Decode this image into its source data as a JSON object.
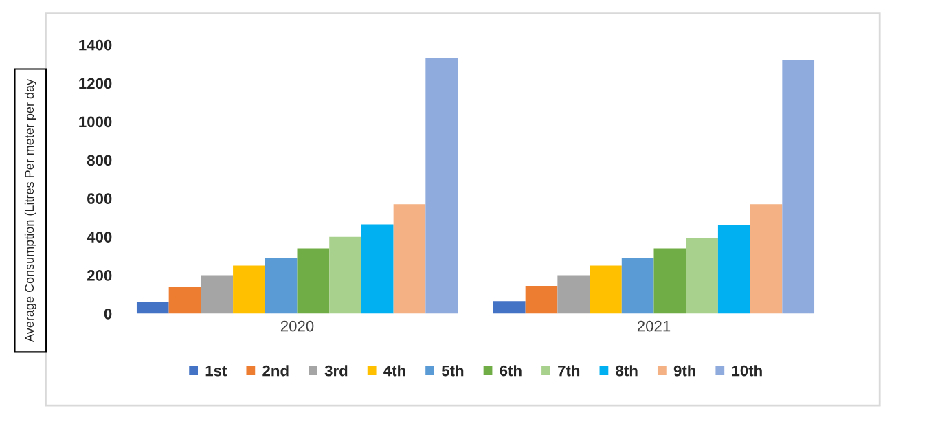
{
  "chart_data": {
    "type": "bar",
    "categories": [
      "2020",
      "2021"
    ],
    "ylabel": "Average Consumption (Litres Per meter per day",
    "ylim": [
      0,
      1400
    ],
    "yticks": [
      0,
      200,
      400,
      600,
      800,
      1000,
      1200,
      1400
    ],
    "grid": false,
    "legend": "bottom",
    "series": [
      {
        "name": "1st",
        "color": "#4472c4",
        "values": [
          60,
          65
        ]
      },
      {
        "name": "2nd",
        "color": "#ed7d31",
        "values": [
          140,
          145
        ]
      },
      {
        "name": "3rd",
        "color": "#a5a5a5",
        "values": [
          200,
          200
        ]
      },
      {
        "name": "4th",
        "color": "#ffc000",
        "values": [
          250,
          250
        ]
      },
      {
        "name": "5th",
        "color": "#5b9bd5",
        "values": [
          290,
          290
        ]
      },
      {
        "name": "6th",
        "color": "#70ad47",
        "values": [
          340,
          340
        ]
      },
      {
        "name": "7th",
        "color": "#a9d18e",
        "values": [
          400,
          395
        ]
      },
      {
        "name": "8th",
        "color": "#00b0f0",
        "values": [
          465,
          460
        ]
      },
      {
        "name": "9th",
        "color": "#f4b183",
        "values": [
          570,
          570
        ]
      },
      {
        "name": "10th",
        "color": "#8faadc",
        "values": [
          1330,
          1320
        ]
      }
    ]
  }
}
